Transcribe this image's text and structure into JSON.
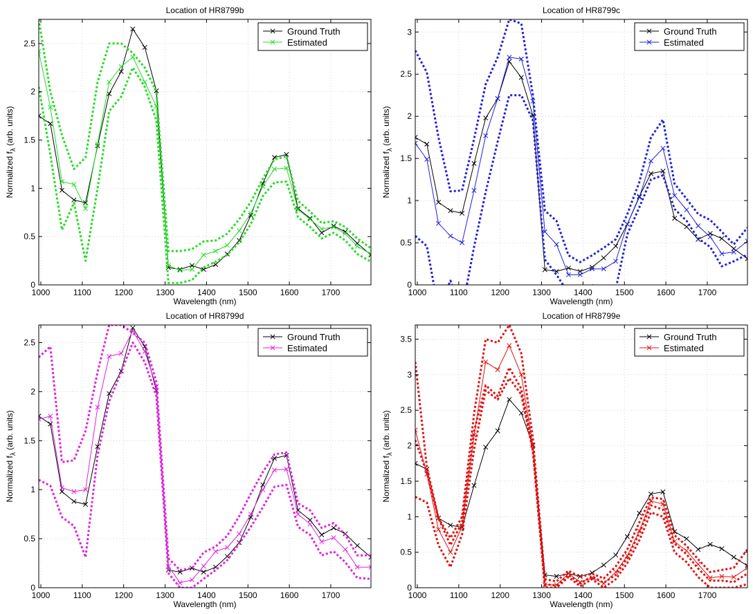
{
  "figure": {
    "xlabel": "Wavelength (nm)",
    "ylabel_main": "Normalized f",
    "ylabel_sub": "λ",
    "ylabel_tail": " (arb. units)"
  },
  "chart_data": [
    {
      "type": "line",
      "title": "Location of HR8799b",
      "xlim": [
        995,
        1797
      ],
      "ylim": [
        0,
        2.75
      ],
      "xticks": [
        1000,
        1100,
        1200,
        1300,
        1400,
        1500,
        1600,
        1700
      ],
      "yticks": [
        0,
        0.5,
        1,
        1.5,
        2,
        2.5
      ],
      "ytick_labels": [
        "0",
        "0.5",
        "1",
        "1.5",
        "2",
        "2.5"
      ],
      "grid": true,
      "legend_position": "top-right",
      "x": [
        995,
        1023,
        1051,
        1080,
        1108,
        1137,
        1165,
        1194,
        1222,
        1251,
        1279,
        1308,
        1336,
        1365,
        1393,
        1422,
        1450,
        1479,
        1507,
        1536,
        1564,
        1593,
        1621,
        1650,
        1678,
        1707,
        1735,
        1764,
        1797
      ],
      "series": [
        {
          "name": "Ground Truth",
          "color": "#000000",
          "marker": "x",
          "style": "solid",
          "values": [
            1.75,
            1.67,
            0.98,
            0.88,
            0.85,
            1.44,
            1.98,
            2.21,
            2.65,
            2.46,
            2.01,
            0.18,
            0.16,
            0.2,
            0.16,
            0.21,
            0.32,
            0.46,
            0.72,
            1.05,
            1.32,
            1.35,
            0.79,
            0.69,
            0.54,
            0.61,
            0.55,
            0.43,
            0.31
          ]
        },
        {
          "name": "Estimated",
          "color": "#22dd22",
          "marker": "x",
          "style": "solid",
          "values": [
            2.42,
            1.84,
            1.07,
            1.04,
            0.79,
            1.46,
            2.1,
            2.26,
            2.36,
            2.1,
            1.85,
            0.2,
            0.15,
            0.16,
            0.31,
            0.35,
            0.41,
            0.56,
            0.74,
            1.02,
            1.2,
            1.21,
            0.78,
            0.68,
            0.58,
            0.6,
            0.53,
            0.4,
            0.32
          ]
        },
        {
          "color": "#22dd22",
          "style": "dashed",
          "values": [
            2.75,
            2.0,
            1.55,
            1.2,
            1.32,
            2.1,
            2.5,
            2.5,
            2.4,
            2.25,
            2.0,
            0.35,
            0.35,
            0.37,
            0.45,
            0.46,
            0.53,
            0.68,
            0.86,
            1.1,
            1.3,
            1.33,
            0.87,
            0.76,
            0.64,
            0.66,
            0.6,
            0.48,
            0.38
          ]
        },
        {
          "color": "#22dd22",
          "style": "dashed",
          "values": [
            2.05,
            1.35,
            0.57,
            0.85,
            0.25,
            1.0,
            1.8,
            1.95,
            2.25,
            2.05,
            1.7,
            0.02,
            0.02,
            0.05,
            0.18,
            0.24,
            0.31,
            0.44,
            0.63,
            0.92,
            1.06,
            1.07,
            0.7,
            0.6,
            0.48,
            0.54,
            0.46,
            0.32,
            0.24
          ]
        }
      ]
    },
    {
      "type": "line",
      "title": "Location of HR8799c",
      "xlim": [
        995,
        1797
      ],
      "ylim": [
        0,
        3.15
      ],
      "xticks": [
        1000,
        1100,
        1200,
        1300,
        1400,
        1500,
        1600,
        1700
      ],
      "yticks": [
        0,
        0.5,
        1,
        1.5,
        2,
        2.5,
        3
      ],
      "ytick_labels": [
        "0",
        "0.5",
        "1",
        "1.5",
        "2",
        "2.5",
        "3"
      ],
      "grid": true,
      "legend_position": "top-right",
      "x": [
        995,
        1023,
        1051,
        1080,
        1108,
        1137,
        1165,
        1194,
        1222,
        1251,
        1279,
        1308,
        1336,
        1365,
        1393,
        1422,
        1450,
        1479,
        1507,
        1536,
        1564,
        1593,
        1621,
        1650,
        1678,
        1707,
        1735,
        1764,
        1797
      ],
      "series": [
        {
          "name": "Ground Truth",
          "color": "#000000",
          "marker": "x",
          "style": "solid",
          "values": [
            1.75,
            1.67,
            0.98,
            0.88,
            0.85,
            1.44,
            1.98,
            2.21,
            2.65,
            2.46,
            2.01,
            0.18,
            0.16,
            0.2,
            0.16,
            0.21,
            0.32,
            0.46,
            0.72,
            1.05,
            1.32,
            1.35,
            0.79,
            0.69,
            0.54,
            0.61,
            0.55,
            0.43,
            0.31
          ]
        },
        {
          "name": "Estimated",
          "color": "#1f1fdd",
          "marker": "x",
          "style": "solid",
          "values": [
            1.68,
            1.49,
            0.73,
            0.58,
            0.5,
            1.12,
            1.77,
            2.21,
            2.7,
            2.68,
            2.18,
            0.63,
            0.48,
            0.12,
            0.12,
            0.19,
            0.19,
            0.28,
            0.72,
            1.04,
            1.47,
            1.62,
            1.06,
            0.89,
            0.7,
            0.57,
            0.37,
            0.39,
            0.52
          ]
        },
        {
          "color": "#1f1fdd",
          "style": "dashed",
          "values": [
            2.78,
            2.52,
            1.75,
            1.11,
            1.12,
            1.73,
            2.38,
            2.7,
            3.15,
            3.1,
            2.25,
            0.88,
            0.76,
            0.35,
            0.27,
            0.35,
            0.44,
            0.54,
            0.84,
            1.22,
            1.75,
            1.96,
            1.2,
            1.02,
            0.84,
            0.77,
            0.63,
            0.48,
            0.68
          ]
        },
        {
          "color": "#1f1fdd",
          "style": "dashed",
          "values": [
            0.58,
            0.46,
            -0.3,
            0.05,
            -0.3,
            0.45,
            1.1,
            1.7,
            2.25,
            2.25,
            1.95,
            0.3,
            0.12,
            -0.1,
            -0.05,
            0.0,
            -0.1,
            -0.05,
            0.6,
            0.92,
            1.25,
            1.3,
            0.9,
            0.76,
            0.55,
            0.45,
            0.22,
            0.28,
            0.36
          ]
        }
      ]
    },
    {
      "type": "line",
      "title": "Location of HR8799d",
      "xlim": [
        995,
        1797
      ],
      "ylim": [
        0,
        2.68
      ],
      "xticks": [
        1000,
        1100,
        1200,
        1300,
        1400,
        1500,
        1600,
        1700
      ],
      "yticks": [
        0,
        0.5,
        1,
        1.5,
        2,
        2.5
      ],
      "ytick_labels": [
        "0",
        "0.5",
        "1",
        "1.5",
        "2",
        "2.5"
      ],
      "grid": true,
      "legend_position": "top-right",
      "x": [
        995,
        1023,
        1051,
        1080,
        1108,
        1137,
        1165,
        1194,
        1222,
        1251,
        1279,
        1308,
        1336,
        1365,
        1393,
        1422,
        1450,
        1479,
        1507,
        1536,
        1564,
        1593,
        1621,
        1650,
        1678,
        1707,
        1735,
        1764,
        1797
      ],
      "series": [
        {
          "name": "Ground Truth",
          "color": "#000000",
          "marker": "x",
          "style": "solid",
          "values": [
            1.75,
            1.67,
            0.98,
            0.88,
            0.85,
            1.44,
            1.98,
            2.21,
            2.65,
            2.46,
            2.01,
            0.18,
            0.16,
            0.2,
            0.16,
            0.21,
            0.32,
            0.46,
            0.72,
            1.05,
            1.32,
            1.35,
            0.79,
            0.69,
            0.54,
            0.61,
            0.55,
            0.43,
            0.31
          ]
        },
        {
          "name": "Estimated",
          "color": "#e020e0",
          "marker": "x",
          "style": "solid",
          "values": [
            1.72,
            1.75,
            1.02,
            0.98,
            1.0,
            1.84,
            2.36,
            2.39,
            2.62,
            2.41,
            2.05,
            0.22,
            0.05,
            0.08,
            0.22,
            0.37,
            0.41,
            0.55,
            0.75,
            1.0,
            1.2,
            1.21,
            0.75,
            0.65,
            0.47,
            0.51,
            0.39,
            0.21,
            0.21
          ]
        },
        {
          "color": "#e020e0",
          "style": "dashed",
          "values": [
            2.35,
            2.46,
            1.28,
            1.3,
            1.6,
            2.2,
            2.68,
            2.68,
            2.6,
            2.5,
            2.1,
            0.3,
            0.18,
            0.2,
            0.36,
            0.42,
            0.53,
            0.73,
            0.96,
            1.18,
            1.36,
            1.38,
            0.86,
            0.79,
            0.61,
            0.66,
            0.54,
            0.33,
            0.33
          ]
        },
        {
          "color": "#e020e0",
          "style": "dashed",
          "values": [
            1.1,
            1.04,
            0.72,
            0.63,
            0.31,
            1.35,
            1.9,
            2.2,
            2.5,
            2.3,
            1.95,
            0.15,
            0.0,
            0.0,
            0.09,
            0.18,
            0.28,
            0.45,
            0.62,
            0.82,
            1.03,
            1.05,
            0.62,
            0.54,
            0.33,
            0.37,
            0.26,
            0.1,
            0.09
          ]
        }
      ]
    },
    {
      "type": "line",
      "title": "Location of HR8799e",
      "xlim": [
        995,
        1797
      ],
      "ylim": [
        0,
        3.7
      ],
      "xticks": [
        1000,
        1100,
        1200,
        1300,
        1400,
        1500,
        1600,
        1700
      ],
      "yticks": [
        0,
        0.5,
        1,
        1.5,
        2,
        2.5,
        3,
        3.5
      ],
      "ytick_labels": [
        "0",
        "0.5",
        "1",
        "1.5",
        "2",
        "2.5",
        "3",
        "3.5"
      ],
      "grid": true,
      "legend_position": "top-right",
      "x": [
        995,
        1023,
        1051,
        1080,
        1108,
        1137,
        1165,
        1194,
        1222,
        1251,
        1279,
        1308,
        1336,
        1365,
        1393,
        1422,
        1450,
        1479,
        1507,
        1536,
        1564,
        1593,
        1621,
        1650,
        1678,
        1707,
        1735,
        1764,
        1797
      ],
      "series": [
        {
          "name": "Ground Truth",
          "color": "#000000",
          "marker": "x",
          "style": "solid",
          "values": [
            1.75,
            1.67,
            0.98,
            0.88,
            0.85,
            1.44,
            1.98,
            2.21,
            2.65,
            2.46,
            2.01,
            0.18,
            0.16,
            0.2,
            0.16,
            0.21,
            0.32,
            0.46,
            0.72,
            1.05,
            1.32,
            1.35,
            0.79,
            0.69,
            0.54,
            0.61,
            0.55,
            0.43,
            0.31
          ]
        },
        {
          "name": "Estimated",
          "color": "#e01010",
          "marker": "x",
          "style": "solid",
          "values": [
            2.22,
            1.6,
            0.82,
            0.5,
            0.86,
            2.15,
            3.18,
            3.07,
            3.41,
            3.0,
            2.0,
            0.04,
            0.04,
            0.2,
            0.08,
            0.14,
            0.06,
            0.22,
            0.45,
            0.8,
            1.22,
            1.18,
            0.65,
            0.52,
            0.33,
            0.14,
            0.16,
            0.15,
            0.28
          ]
        },
        {
          "color": "#e01010",
          "style": "dashed",
          "values": [
            3.18,
            1.7,
            0.98,
            0.7,
            1.0,
            2.45,
            3.5,
            3.45,
            3.7,
            3.3,
            2.1,
            0.12,
            0.09,
            0.24,
            0.15,
            0.2,
            0.13,
            0.3,
            0.54,
            0.92,
            1.27,
            1.25,
            0.74,
            0.59,
            0.4,
            0.22,
            0.25,
            0.28,
            0.54
          ]
        },
        {
          "color": "#e01010",
          "style": "dashed",
          "values": [
            2.08,
            1.62,
            0.98,
            0.6,
            0.92,
            2.2,
            2.85,
            2.7,
            3.1,
            2.8,
            1.95,
            0.05,
            0.03,
            0.18,
            0.06,
            0.16,
            0.07,
            0.18,
            0.42,
            0.77,
            1.16,
            1.1,
            0.62,
            0.47,
            0.27,
            0.1,
            0.1,
            0.08,
            0.2
          ]
        },
        {
          "color": "#e01010",
          "style": "dashed",
          "values": [
            1.28,
            1.2,
            0.6,
            0.29,
            0.75,
            1.95,
            2.78,
            2.65,
            2.95,
            2.72,
            1.92,
            0.0,
            0.0,
            0.15,
            0.02,
            0.12,
            0.0,
            0.12,
            0.35,
            0.67,
            1.06,
            1.0,
            0.5,
            0.36,
            0.15,
            0.0,
            0.0,
            0.0,
            0.05
          ]
        }
      ]
    }
  ]
}
